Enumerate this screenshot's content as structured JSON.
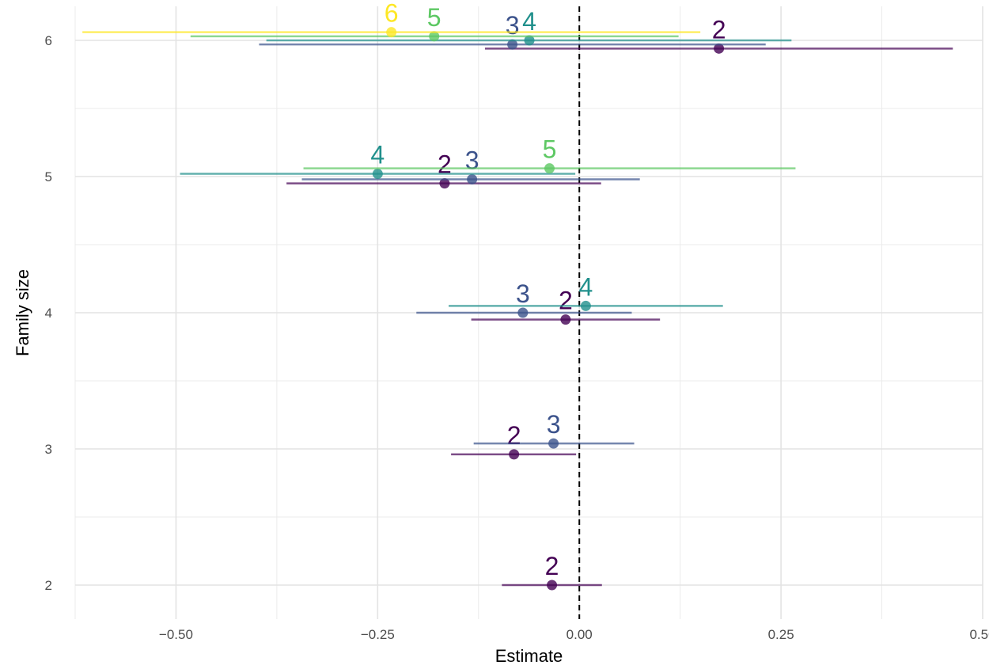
{
  "chart_data": {
    "type": "scatter",
    "subtype": "forest-plot",
    "xlabel": "Estimate",
    "ylabel": "Family size",
    "xlim": [
      -0.625,
      0.5
    ],
    "ylim": [
      1.75,
      6.25
    ],
    "x_ticks": [
      -0.5,
      -0.25,
      0.0,
      0.25,
      0.5
    ],
    "x_tick_labels": [
      "−0.50",
      "−0.25",
      "0.00",
      "0.25",
      "0.50"
    ],
    "y_ticks": [
      2,
      3,
      4,
      5,
      6
    ],
    "y_tick_labels": [
      "2",
      "3",
      "4",
      "5",
      "6"
    ],
    "grid": true,
    "reference_line": {
      "x": 0,
      "style": "dashed"
    },
    "legend": "none",
    "group_colors": {
      "2": "#440154",
      "3": "#3b528b",
      "4": "#21908c",
      "5": "#5dc863",
      "6": "#fde725"
    },
    "points": [
      {
        "family_size": 2,
        "group": "2",
        "estimate": -0.034,
        "low": -0.096,
        "high": 0.028,
        "y": 2.0
      },
      {
        "family_size": 3,
        "group": "2",
        "estimate": -0.081,
        "low": -0.159,
        "high": -0.004,
        "y": 2.96
      },
      {
        "family_size": 3,
        "group": "3",
        "estimate": -0.032,
        "low": -0.131,
        "high": 0.068,
        "y": 3.04
      },
      {
        "family_size": 4,
        "group": "2",
        "estimate": -0.017,
        "low": -0.134,
        "high": 0.1,
        "y": 3.95
      },
      {
        "family_size": 4,
        "group": "3",
        "estimate": -0.07,
        "low": -0.202,
        "high": 0.065,
        "y": 4.0
      },
      {
        "family_size": 4,
        "group": "4",
        "estimate": 0.008,
        "low": -0.162,
        "high": 0.178,
        "y": 4.05
      },
      {
        "family_size": 5,
        "group": "2",
        "estimate": -0.167,
        "low": -0.363,
        "high": 0.027,
        "y": 4.95
      },
      {
        "family_size": 5,
        "group": "3",
        "estimate": -0.133,
        "low": -0.344,
        "high": 0.075,
        "y": 4.98
      },
      {
        "family_size": 5,
        "group": "4",
        "estimate": -0.25,
        "low": -0.495,
        "high": -0.005,
        "y": 5.02
      },
      {
        "family_size": 5,
        "group": "5",
        "estimate": -0.037,
        "low": -0.342,
        "high": 0.268,
        "y": 5.06
      },
      {
        "family_size": 6,
        "group": "2",
        "estimate": 0.173,
        "low": -0.117,
        "high": 0.463,
        "y": 5.94
      },
      {
        "family_size": 6,
        "group": "3",
        "estimate": -0.083,
        "low": -0.397,
        "high": 0.231,
        "y": 5.97
      },
      {
        "family_size": 6,
        "group": "4",
        "estimate": -0.062,
        "low": -0.388,
        "high": 0.263,
        "y": 6.0
      },
      {
        "family_size": 6,
        "group": "5",
        "estimate": -0.18,
        "low": -0.482,
        "high": 0.123,
        "y": 6.03
      },
      {
        "family_size": 6,
        "group": "6",
        "estimate": -0.233,
        "low": -0.616,
        "high": 0.15,
        "y": 6.06
      }
    ]
  }
}
